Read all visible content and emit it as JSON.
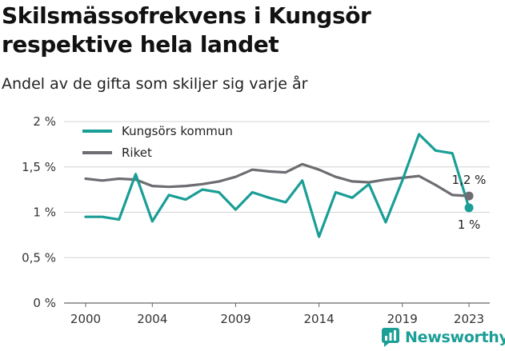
{
  "title_line1": "Skilsmässofrekvens i Kungsör",
  "title_line2": "respektive hela landet",
  "subtitle": "Andel av de gifta som skiljer sig varje år",
  "brand": {
    "name": "Newsworthy",
    "color": "#1a9e96",
    "icon": "newsworthy-logo-icon"
  },
  "chart_data": {
    "type": "line",
    "x": [
      2000,
      2001,
      2002,
      2003,
      2004,
      2005,
      2006,
      2007,
      2008,
      2009,
      2010,
      2011,
      2012,
      2013,
      2014,
      2015,
      2016,
      2017,
      2018,
      2019,
      2020,
      2021,
      2022,
      2023
    ],
    "ylim": [
      0,
      2
    ],
    "y_ticks": [
      0,
      0.5,
      1,
      1.5,
      2
    ],
    "y_tick_labels": [
      "0 %",
      "0,5 %",
      "1 %",
      "1,5 %",
      "2 %"
    ],
    "x_ticks": [
      2000,
      2004,
      2009,
      2014,
      2019,
      2023
    ],
    "x_tick_labels": [
      "2000",
      "2004",
      "2009",
      "2014",
      "2019",
      "2023"
    ],
    "grid": true,
    "legend_position": "top-left",
    "series": [
      {
        "name": "Kungsörs kommun",
        "color": "#1a9e96",
        "values": [
          0.95,
          0.95,
          0.92,
          1.42,
          0.9,
          1.19,
          1.14,
          1.25,
          1.22,
          1.03,
          1.22,
          1.16,
          1.11,
          1.35,
          0.73,
          1.22,
          1.16,
          1.31,
          0.89,
          1.35,
          1.86,
          1.68,
          1.65,
          1.05
        ],
        "end_label": "1 %"
      },
      {
        "name": "Riket",
        "color": "#6d6d72",
        "values": [
          1.37,
          1.35,
          1.37,
          1.36,
          1.29,
          1.28,
          1.29,
          1.31,
          1.34,
          1.39,
          1.47,
          1.45,
          1.44,
          1.53,
          1.47,
          1.39,
          1.34,
          1.33,
          1.36,
          1.38,
          1.4,
          1.3,
          1.19,
          1.18
        ],
        "end_label": "1,2 %"
      }
    ]
  }
}
